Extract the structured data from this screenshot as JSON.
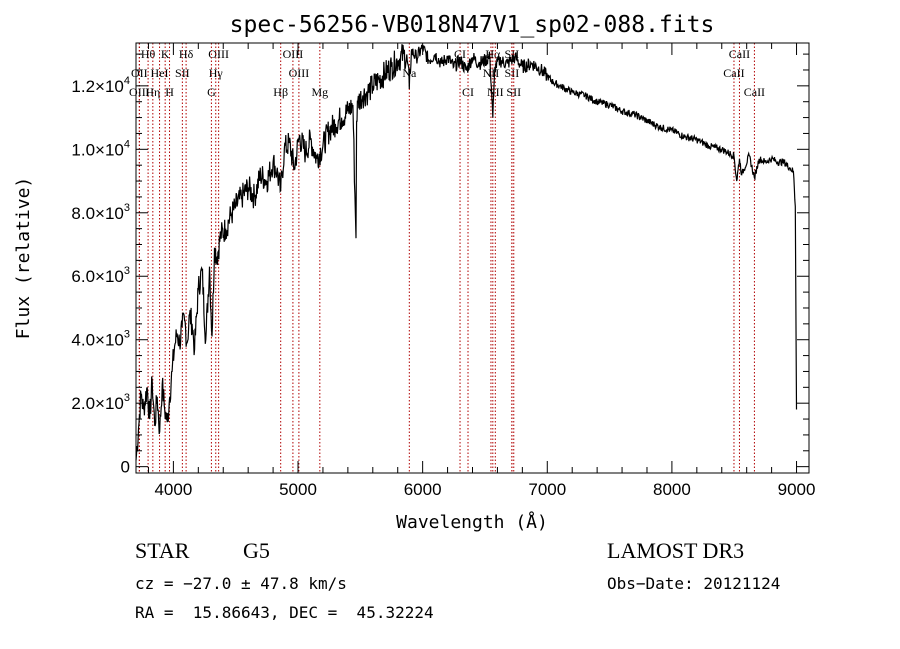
{
  "chart_data": {
    "type": "line",
    "title": "spec-56256-VB018N47V1_sp02-088.fits",
    "xlabel": "Wavelength (Å)",
    "ylabel": "Flux (relative)",
    "xlim": [
      3700,
      9100
    ],
    "ylim": [
      -200,
      13350
    ],
    "x_ticks": [
      {
        "value": 4000,
        "label": "4000"
      },
      {
        "value": 5000,
        "label": "5000"
      },
      {
        "value": 6000,
        "label": "6000"
      },
      {
        "value": 7000,
        "label": "7000"
      },
      {
        "value": 8000,
        "label": "8000"
      },
      {
        "value": 9000,
        "label": "9000"
      }
    ],
    "y_ticks": [
      {
        "value": 0,
        "mant": "0",
        "exp": ""
      },
      {
        "value": 2000,
        "mant": "2.0×10",
        "exp": "3"
      },
      {
        "value": 4000,
        "mant": "4.0×10",
        "exp": "3"
      },
      {
        "value": 6000,
        "mant": "6.0×10",
        "exp": "3"
      },
      {
        "value": 8000,
        "mant": "8.0×10",
        "exp": "3"
      },
      {
        "value": 10000,
        "mant": "1.0×10",
        "exp": "4"
      },
      {
        "value": 12000,
        "mant": "1.2×10",
        "exp": "4"
      }
    ],
    "series": [
      {
        "name": "flux",
        "x": [
          3700,
          3720,
          3740,
          3760,
          3790,
          3810,
          3830,
          3850,
          3870,
          3890,
          3910,
          3930,
          3950,
          3970,
          3990,
          4010,
          4030,
          4050,
          4070,
          4090,
          4110,
          4130,
          4150,
          4170,
          4200,
          4230,
          4260,
          4290,
          4310,
          4330,
          4350,
          4380,
          4420,
          4460,
          4500,
          4550,
          4600,
          4650,
          4700,
          4750,
          4800,
          4830,
          4861,
          4890,
          4930,
          4970,
          5010,
          5060,
          5100,
          5150,
          5200,
          5250,
          5300,
          5350,
          5400,
          5440,
          5465,
          5470,
          5480,
          5520,
          5560,
          5600,
          5650,
          5700,
          5750,
          5800,
          5850,
          5880,
          5893,
          5910,
          5950,
          6000,
          6050,
          6100,
          6150,
          6200,
          6250,
          6300,
          6350,
          6400,
          6450,
          6500,
          6540,
          6563,
          6580,
          6620,
          6680,
          6740,
          6800,
          6880,
          6950,
          7000,
          7050,
          7100,
          7200,
          7300,
          7400,
          7500,
          7600,
          7700,
          7800,
          7900,
          8000,
          8100,
          8200,
          8300,
          8400,
          8498,
          8520,
          8542,
          8560,
          8620,
          8662,
          8700,
          8750,
          8800,
          8850,
          8900,
          8950,
          8975,
          8990,
          9000
        ],
        "y": [
          200,
          1200,
          2300,
          1800,
          2500,
          1500,
          2700,
          1300,
          2200,
          1100,
          2600,
          1800,
          1400,
          2200,
          3000,
          3800,
          4200,
          3900,
          4400,
          4600,
          3900,
          4800,
          4500,
          3700,
          5600,
          6200,
          4000,
          6300,
          4100,
          6900,
          6600,
          7300,
          7500,
          7900,
          8200,
          8500,
          8800,
          8500,
          9200,
          9000,
          9600,
          9300,
          8700,
          10000,
          10200,
          9400,
          10400,
          9900,
          10300,
          9700,
          10100,
          10600,
          10800,
          11000,
          11200,
          11400,
          7200,
          10900,
          11500,
          11700,
          11800,
          12000,
          12200,
          12400,
          12600,
          12800,
          13000,
          12700,
          11900,
          13100,
          12900,
          13200,
          12800,
          13000,
          12700,
          12900,
          12600,
          12800,
          12500,
          12900,
          12700,
          12800,
          12900,
          11000,
          12600,
          12800,
          12700,
          12900,
          12600,
          12700,
          12500,
          12300,
          12100,
          12000,
          11800,
          11700,
          11500,
          11400,
          11200,
          11100,
          10900,
          10700,
          10600,
          10400,
          10300,
          10100,
          10000,
          9800,
          9000,
          9700,
          9200,
          9800,
          9100,
          9700,
          9600,
          9700,
          9600,
          9600,
          9400,
          9300,
          8200,
          1800
        ]
      }
    ],
    "spectral_lines": [
      {
        "label": "Hθ",
        "wave": 3797,
        "row": 1
      },
      {
        "label": "OII",
        "wave": 3727,
        "row": 2
      },
      {
        "label": "OIII",
        "wave": 3727,
        "row": 3
      },
      {
        "label": "Hη",
        "wave": 3835,
        "row": 3
      },
      {
        "label": "HeI",
        "wave": 3889,
        "row": 2
      },
      {
        "label": "K",
        "wave": 3934,
        "row": 1
      },
      {
        "label": "SII",
        "wave": 4072,
        "row": 2
      },
      {
        "label": "H",
        "wave": 3969,
        "row": 3
      },
      {
        "label": "Hδ",
        "wave": 4102,
        "row": 1
      },
      {
        "label": "OIII",
        "wave": 4363,
        "row": 1
      },
      {
        "label": "Hγ",
        "wave": 4340,
        "row": 2
      },
      {
        "label": "G",
        "wave": 4305,
        "row": 3
      },
      {
        "label": "OIII",
        "wave": 4959,
        "row": 1
      },
      {
        "label": "OIII",
        "wave": 5007,
        "row": 2
      },
      {
        "label": "Hβ",
        "wave": 4861,
        "row": 3
      },
      {
        "label": "Mg",
        "wave": 5175,
        "row": 3
      },
      {
        "label": "Na",
        "wave": 5893,
        "row": 2
      },
      {
        "label": "CI",
        "wave": 6300,
        "row": 1
      },
      {
        "label": "CI",
        "wave": 6364,
        "row": 3
      },
      {
        "label": "Hα",
        "wave": 6563,
        "row": 1
      },
      {
        "label": "NII",
        "wave": 6548,
        "row": 2
      },
      {
        "label": "NII",
        "wave": 6583,
        "row": 3
      },
      {
        "label": "SII",
        "wave": 6716,
        "row": 1
      },
      {
        "label": "SII",
        "wave": 6716,
        "row": 2
      },
      {
        "label": "SII",
        "wave": 6731,
        "row": 3
      },
      {
        "label": "CaII",
        "wave": 8542,
        "row": 1
      },
      {
        "label": "CaII",
        "wave": 8498,
        "row": 2
      },
      {
        "label": "CaII",
        "wave": 8662,
        "row": 3
      }
    ],
    "line_color": "#b00000"
  },
  "info": {
    "object_class": "STAR",
    "subclass": "G5",
    "survey": "LAMOST DR3",
    "redshift": "cz = −27.0 ± 47.8 km/s",
    "obs_date": "Obs−Date: 20121124",
    "coords": "RA =  15.86643, DEC =  45.32224"
  }
}
